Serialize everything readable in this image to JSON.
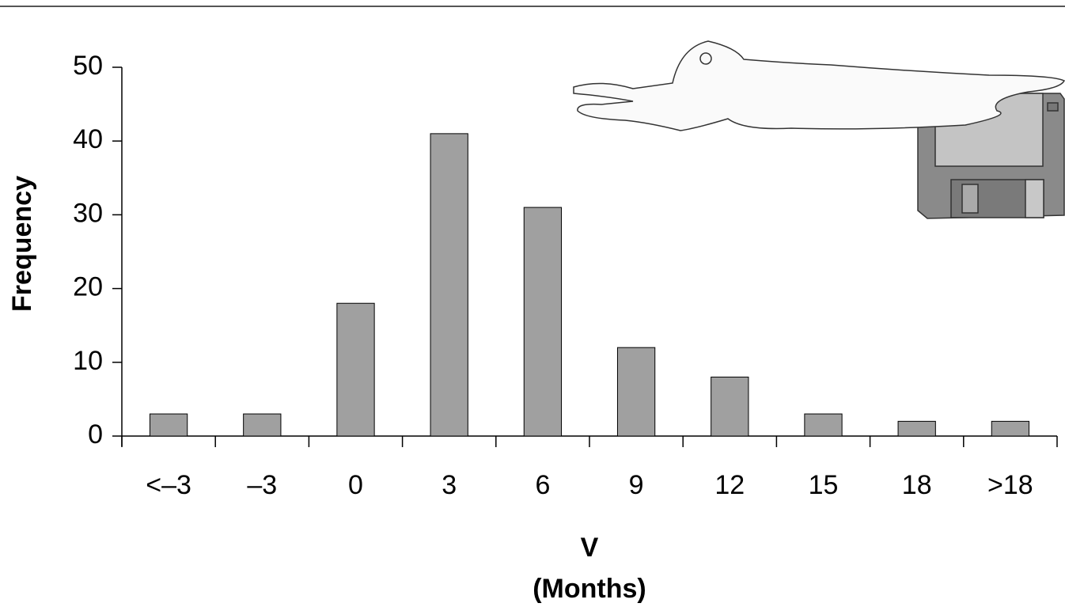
{
  "chart_data": {
    "type": "bar",
    "y_label": "Frequency",
    "x_label_lines": [
      "V",
      "(Months)"
    ],
    "categories": [
      "<–3",
      "–3",
      "0",
      "3",
      "6",
      "9",
      "12",
      "15",
      "18",
      ">18"
    ],
    "values": [
      3,
      3,
      18,
      41,
      31,
      12,
      8,
      3,
      2,
      2
    ],
    "color": "#a0a0a0",
    "ylim": [
      0,
      50
    ],
    "yticks": [
      0,
      10,
      20,
      30,
      40,
      50
    ],
    "grid": false
  }
}
